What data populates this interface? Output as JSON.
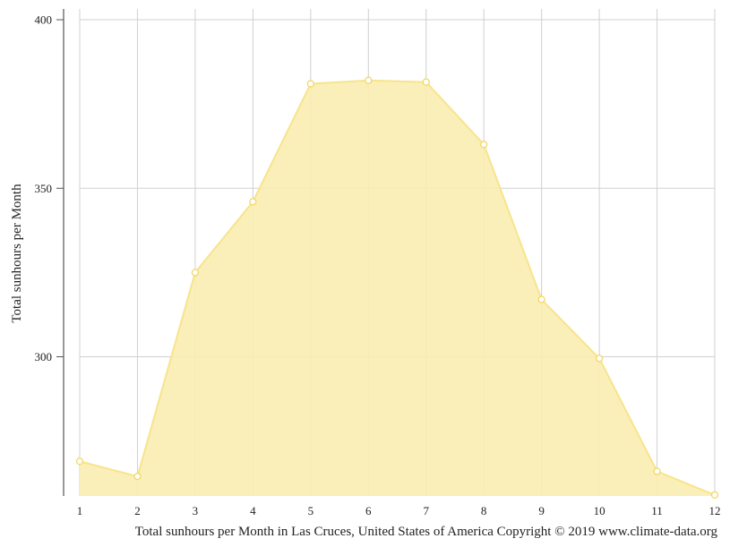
{
  "chart_data": {
    "type": "area",
    "x": [
      1,
      2,
      3,
      4,
      5,
      6,
      7,
      8,
      9,
      10,
      11,
      12
    ],
    "values": [
      269,
      264.5,
      325,
      346,
      381,
      382,
      381.5,
      363,
      317,
      299.5,
      266,
      259
    ],
    "xlabel": "",
    "ylabel": "Total sunhours per Month",
    "caption": "Total sunhours per Month in Las Cruces, United States of America Copyright © 2019 www.climate-data.org",
    "y_ticks": [
      300,
      350,
      400
    ],
    "x_ticks": [
      1,
      2,
      3,
      4,
      5,
      6,
      7,
      8,
      9,
      10,
      11,
      12
    ],
    "ylim": [
      258.7,
      403.2
    ],
    "xlim": [
      1,
      12
    ],
    "grid": true,
    "colors": {
      "fill": "#f9edb0",
      "line": "#f7e48c",
      "marker_stroke": "#f3d766",
      "marker_fill": "#ffffff",
      "grid": "#d0d0d0",
      "axis": "#555555"
    }
  }
}
